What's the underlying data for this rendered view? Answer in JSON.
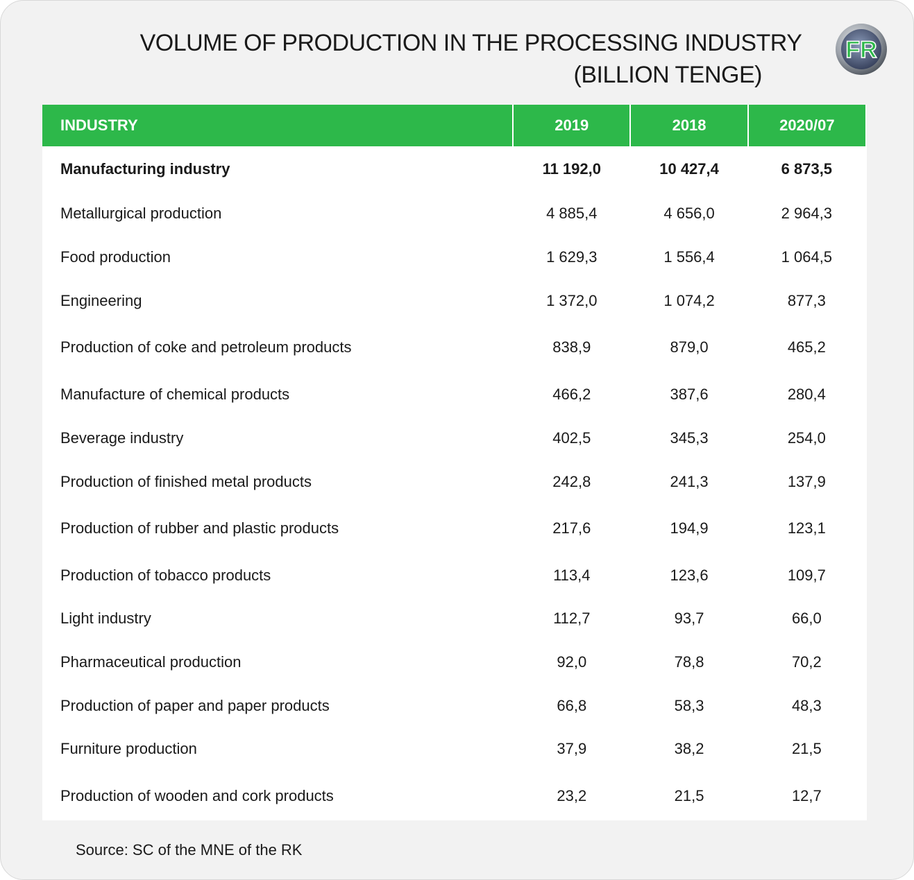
{
  "title_line1": "VOLUME OF PRODUCTION IN THE PROCESSING INDUSTRY",
  "title_line2": "(BILLION TENGE)",
  "logo": {
    "text": "FR",
    "icon": "fr-logo-icon",
    "colors": {
      "green": "#2db84a",
      "ring": "#8a9098"
    }
  },
  "source": "Source: SC of the MNE of the RK",
  "colors": {
    "header_bg": "#2db84a",
    "header_text": "#ffffff",
    "panel_bg": "#f2f2f2",
    "table_bg": "#ffffff"
  },
  "chart_data": {
    "type": "table",
    "title": "VOLUME OF PRODUCTION IN THE PROCESSING INDUSTRY (BILLION TENGE)",
    "columns": [
      "INDUSTRY",
      "2019",
      "2018",
      "2020/07"
    ],
    "rows": [
      {
        "industry": "Manufacturing industry",
        "y2019": "11 192,0",
        "y2018": "10 427,4",
        "y2020_07": "6 873,5",
        "bold": true
      },
      {
        "industry": "Metallurgical production",
        "y2019": "4 885,4",
        "y2018": "4 656,0",
        "y2020_07": "2 964,3"
      },
      {
        "industry": "Food production",
        "y2019": "1 629,3",
        "y2018": "1 556,4",
        "y2020_07": "1 064,5"
      },
      {
        "industry": "Engineering",
        "y2019": "1 372,0",
        "y2018": "1 074,2",
        "y2020_07": "877,3"
      },
      {
        "industry": "Production of coke and petroleum products",
        "y2019": "838,9",
        "y2018": "879,0",
        "y2020_07": "465,2"
      },
      {
        "industry": "Manufacture of chemical products",
        "y2019": "466,2",
        "y2018": "387,6",
        "y2020_07": "280,4"
      },
      {
        "industry": "Beverage industry",
        "y2019": "402,5",
        "y2018": "345,3",
        "y2020_07": "254,0"
      },
      {
        "industry": "Production of finished metal products",
        "y2019": "242,8",
        "y2018": "241,3",
        "y2020_07": "137,9"
      },
      {
        "industry": "Production of rubber and plastic products",
        "y2019": "217,6",
        "y2018": "194,9",
        "y2020_07": "123,1"
      },
      {
        "industry": "Production of tobacco products",
        "y2019": "113,4",
        "y2018": "123,6",
        "y2020_07": "109,7"
      },
      {
        "industry": "Light industry",
        "y2019": "112,7",
        "y2018": "93,7",
        "y2020_07": "66,0"
      },
      {
        "industry": "Pharmaceutical production",
        "y2019": "92,0",
        "y2018": "78,8",
        "y2020_07": "70,2"
      },
      {
        "industry": "Production of paper and paper products",
        "y2019": "66,8",
        "y2018": "58,3",
        "y2020_07": "48,3"
      },
      {
        "industry": "Furniture production",
        "y2019": "37,9",
        "y2018": "38,2",
        "y2020_07": "21,5"
      },
      {
        "industry": "Production of wooden and cork products",
        "y2019": "23,2",
        "y2018": "21,5",
        "y2020_07": "12,7"
      }
    ]
  }
}
